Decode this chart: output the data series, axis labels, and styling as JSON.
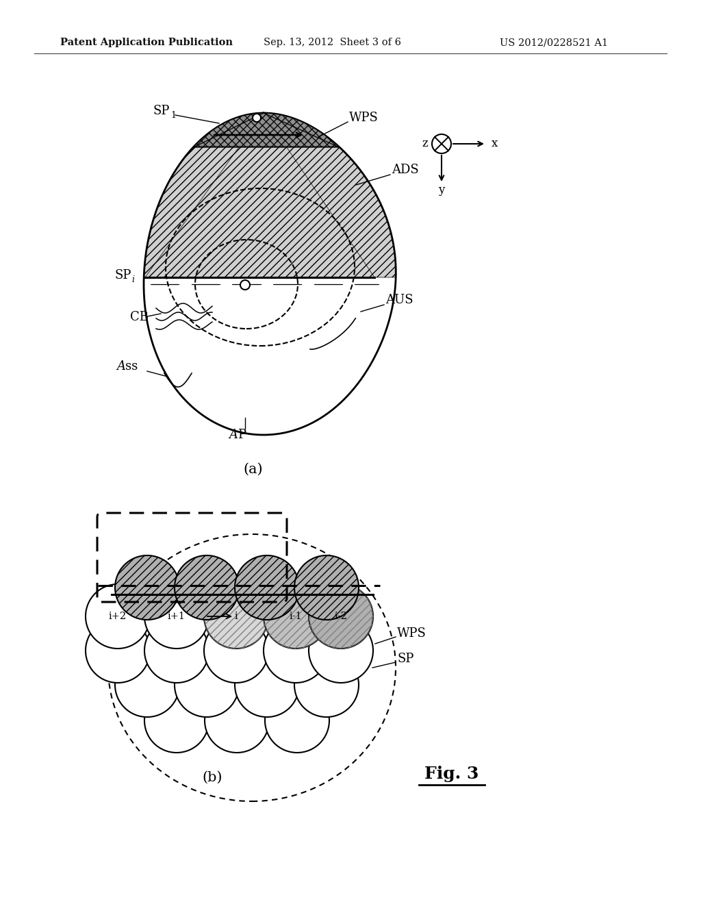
{
  "bg_color": "#ffffff",
  "header_text": "Patent Application Publication",
  "header_date": "Sep. 13, 2012  Sheet 3 of 6",
  "header_patent": "US 2012/0228521 A1",
  "fig_label_a": "(a)",
  "fig_label_b": "(b)",
  "fig_label": "Fig. 3",
  "label_color": "#000000",
  "shade_color": "#cccccc"
}
